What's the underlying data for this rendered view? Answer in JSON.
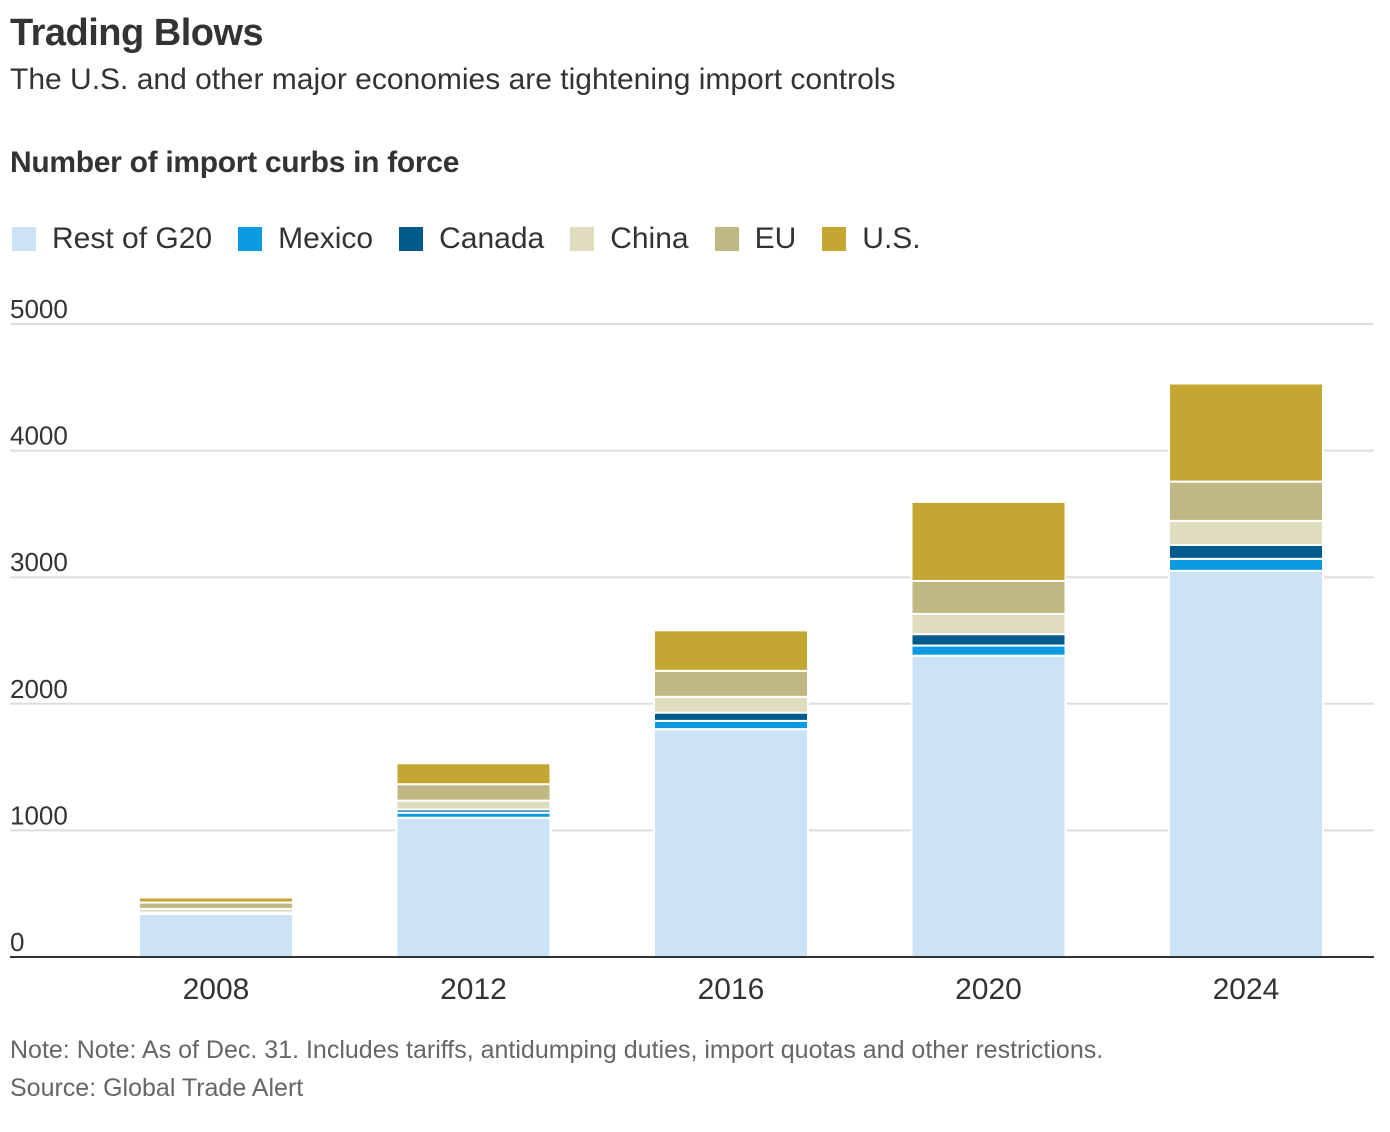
{
  "header": {
    "title": "Trading Blows",
    "subtitle": "The U.S. and other major economies are tightening import controls"
  },
  "chart_heading": "Number of import curbs in force",
  "footer": {
    "note": "Note: Note: As of Dec. 31. Includes tariffs, antidumping duties, import quotas and other restrictions.",
    "source": "Source: Global Trade Alert"
  },
  "chart_data": {
    "type": "bar",
    "stacked": true,
    "title": "Number of import curbs in force",
    "xlabel": "",
    "ylabel": "",
    "ylim": [
      0,
      5000
    ],
    "yticks": [
      0,
      1000,
      2000,
      3000,
      4000,
      5000
    ],
    "grid": true,
    "legend_position": "top-left",
    "categories": [
      "2008",
      "2012",
      "2016",
      "2020",
      "2024"
    ],
    "series": [
      {
        "name": "Rest of G20",
        "color": "#cce2f5",
        "values": [
          340,
          1100,
          1800,
          2380,
          3050
        ]
      },
      {
        "name": "Mexico",
        "color": "#0a9ae0",
        "values": [
          5,
          40,
          65,
          80,
          95
        ]
      },
      {
        "name": "Canada",
        "color": "#005b8c",
        "values": [
          5,
          25,
          65,
          90,
          110
        ]
      },
      {
        "name": "China",
        "color": "#e0dcbf",
        "values": [
          30,
          70,
          125,
          160,
          190
        ]
      },
      {
        "name": "EU",
        "color": "#c0b882",
        "values": [
          50,
          130,
          205,
          260,
          310
        ]
      },
      {
        "name": "U.S.",
        "color": "#c4a632",
        "values": [
          40,
          165,
          320,
          625,
          775
        ]
      }
    ]
  }
}
